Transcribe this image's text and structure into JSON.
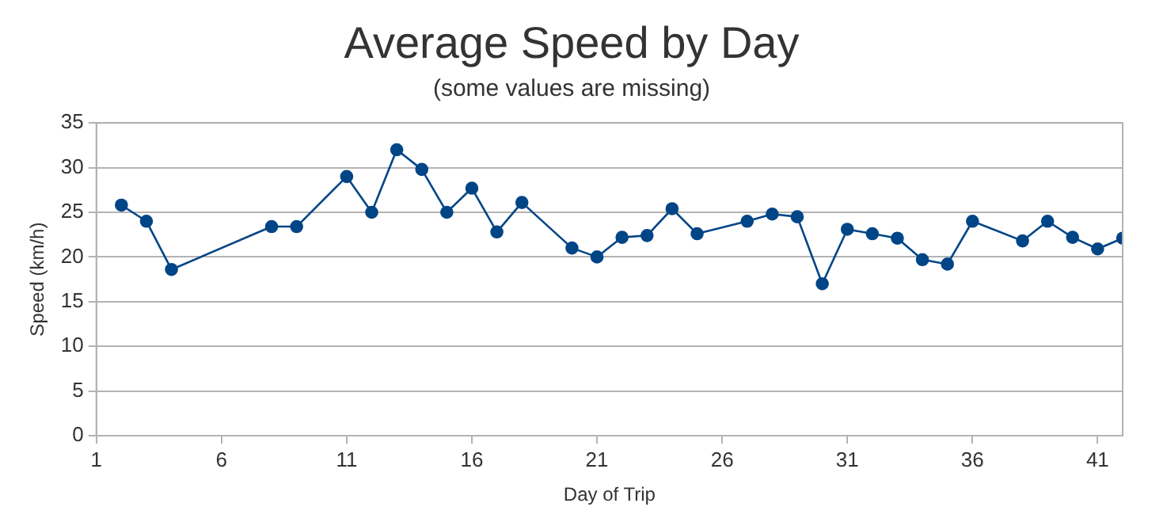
{
  "chart_data": {
    "type": "line",
    "title": "Average Speed by Day",
    "subtitle": "(some values are missing)",
    "xlabel": "Day of Trip",
    "ylabel": "Speed (km/h)",
    "x": [
      2,
      3,
      4,
      8,
      9,
      11,
      12,
      13,
      14,
      15,
      16,
      17,
      18,
      20,
      21,
      22,
      23,
      24,
      25,
      27,
      28,
      29,
      30,
      31,
      32,
      33,
      34,
      35,
      36,
      38,
      39,
      40,
      41,
      42
    ],
    "series": [
      {
        "color": "#004586",
        "values": [
          25.8,
          24,
          18.6,
          23.4,
          23.4,
          29,
          25,
          32,
          29.8,
          25,
          27.7,
          22.8,
          26.1,
          21,
          20,
          22.2,
          22.4,
          25.4,
          22.6,
          24,
          24.8,
          24.5,
          17,
          23.1,
          22.6,
          22.1,
          19.7,
          19.2,
          24,
          21.8,
          24,
          22.2,
          20.9,
          22.1
        ]
      }
    ],
    "xlim": [
      1,
      42
    ],
    "xticks": [
      1,
      6,
      11,
      16,
      21,
      26,
      31,
      36,
      41
    ],
    "ylim": [
      0,
      35
    ],
    "yticks": [
      0,
      5,
      10,
      15,
      20,
      25,
      30,
      35
    ],
    "grid": "y",
    "legend": false,
    "marker": "circle",
    "line_style": "solid"
  }
}
